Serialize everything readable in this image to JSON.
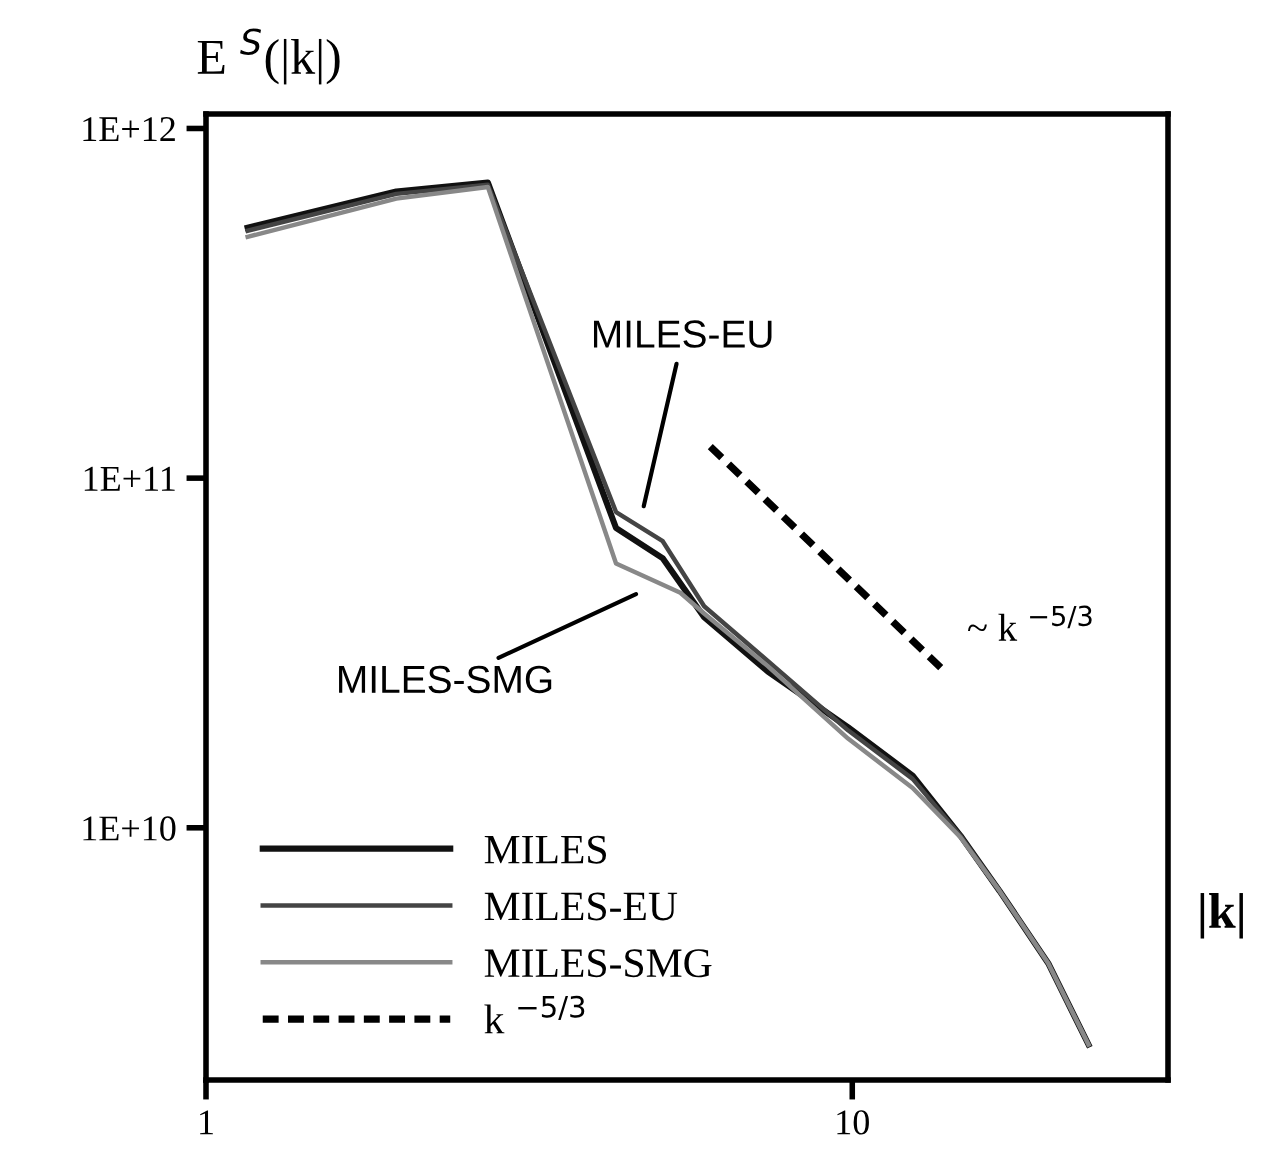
{
  "chart_data": {
    "type": "line",
    "log": "xy",
    "ylabel": "E $^{S}$(|k|)",
    "xlabel": "|k|",
    "xlim": [
      1,
      30.8
    ],
    "ylim": [
      1900000000.0,
      1100000000000.0
    ],
    "xticks": [
      1,
      10
    ],
    "yticks": [
      {
        "value": 10000000000.0,
        "label": "1E+10"
      },
      {
        "value": 100000000000.0,
        "label": "1E+11"
      },
      {
        "value": 1000000000000.0,
        "label": "1E+12"
      }
    ],
    "grid": false,
    "legend": "bottom left",
    "line_style": "solid",
    "marker": "none",
    "series": [
      {
        "name": "MILES",
        "color": "#111111",
        "x": [
          1.16,
          1.97,
          2.73,
          4.31,
          5.09,
          5.9,
          7.4,
          9.85,
          12.4,
          14.7,
          16.9,
          20.1,
          23.2
        ],
        "values": [
          520000000000.0,
          660000000000.0,
          700000000000.0,
          72000000000.0,
          59000000000.0,
          40000000000.0,
          28000000000.0,
          19400000000.0,
          14100000000.0,
          9500000000.0,
          6600000000.0,
          4100000000.0,
          2400000000.0
        ]
      },
      {
        "name": "MILES-EU",
        "color": "#444444",
        "x": [
          1.16,
          1.97,
          2.73,
          4.31,
          5.09,
          5.9,
          7.4,
          9.85,
          12.4,
          14.7,
          16.9,
          20.1,
          23.2
        ],
        "values": [
          510000000000.0,
          650000000000.0,
          690000000000.0,
          80000000000.0,
          66000000000.0,
          43000000000.0,
          30000000000.0,
          19000000000.0,
          13800000000.0,
          9500000000.0,
          6600000000.0,
          4100000000.0,
          2400000000.0
        ]
      },
      {
        "name": "MILES-SMG",
        "color": "#888888",
        "x": [
          1.16,
          1.97,
          2.73,
          4.31,
          5.42,
          5.9,
          7.4,
          9.85,
          12.4,
          14.7,
          16.9,
          20.1,
          23.2
        ],
        "values": [
          490000000000.0,
          630000000000.0,
          680000000000.0,
          57000000000.0,
          47000000000.0,
          41000000000.0,
          29000000000.0,
          18000000000.0,
          13000000000.0,
          9400000000.0,
          6600000000.0,
          4100000000.0,
          2400000000.0
        ]
      },
      {
        "name": "k $^{−5/3}$",
        "color": "#000000",
        "line_style": "dashed",
        "x": [
          6.03,
          13.9
        ],
        "values": [
          123000000000.0,
          28000000000.0
        ]
      }
    ],
    "annotations": [
      "MILES-EU",
      "MILES-SMG",
      {
        "text": "~ k $^{−5/3}$",
        "x": 13.9,
        "y": 28000000000.0
      }
    ]
  }
}
